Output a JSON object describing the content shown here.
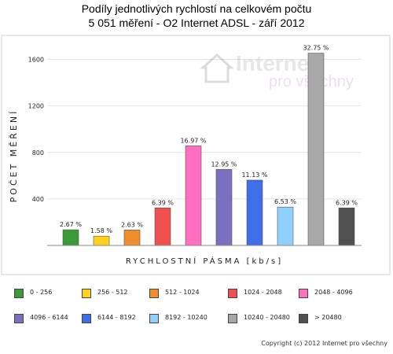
{
  "title_line1": "Podíly jednotlivých rychlostí na celkovém počtu",
  "title_line2": "5 051 měření - O2 Internet ADSL  - září 2012",
  "watermark": {
    "word1": "Internet",
    "word2": "pro všechny"
  },
  "copyright": "Copyright (c) 2012 Internet pro všechny",
  "chart_data": {
    "type": "bar",
    "title": "Podíly jednotlivých rychlostí na celkovém počtu",
    "subtitle": "5 051 měření - O2 Internet ADSL  - září 2012",
    "xlabel": "RYCHLOSTNÍ PÁSMA [kb/s]",
    "ylabel": "POČET MĚŘENÍ",
    "ylim": [
      0,
      1800
    ],
    "yticks": [
      400,
      800,
      1200,
      1600
    ],
    "grid": true,
    "legend_position": "bottom",
    "categories": [
      "0 - 256",
      "256 - 512",
      "512 - 1024",
      "1024 - 2048",
      "2048 - 4096",
      "4096 - 6144",
      "6144 - 8192",
      "8192 - 10240",
      "10240 - 20480",
      "> 20480"
    ],
    "values": [
      135,
      80,
      133,
      323,
      857,
      654,
      562,
      330,
      1654,
      323
    ],
    "labels": [
      "2.67 %",
      "1.58 %",
      "2.63 %",
      "6.39 %",
      "16.97 %",
      "12.95 %",
      "11.13 %",
      "6.53 %",
      "32.75 %",
      "6.39 %"
    ],
    "colors": [
      "#3a9a3a",
      "#ffd11a",
      "#f08c2a",
      "#f05050",
      "#ff6ec0",
      "#7b6fc0",
      "#3e6ee8",
      "#8fd0ff",
      "#a8a8a8",
      "#505050"
    ]
  }
}
